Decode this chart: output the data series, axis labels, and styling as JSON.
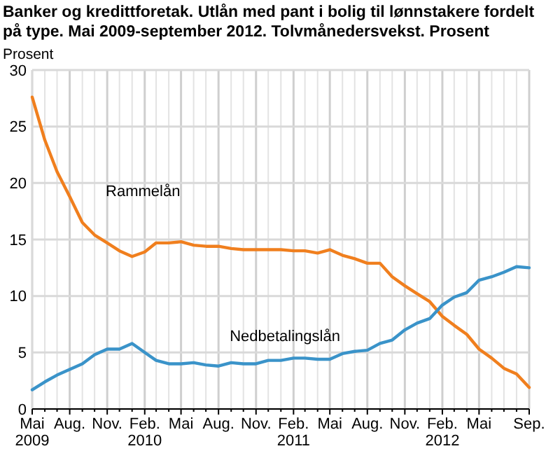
{
  "chart_data": {
    "type": "line",
    "title": "Banker og kredittforetak. Utlån med pant i bolig til lønnstakere fordelt på type. Mai 2009-september 2012. Tolvmånedersvekst. Prosent",
    "ylabel": "Prosent",
    "x": [
      "2009-05",
      "2009-06",
      "2009-07",
      "2009-08",
      "2009-09",
      "2009-10",
      "2009-11",
      "2009-12",
      "2010-01",
      "2010-02",
      "2010-03",
      "2010-04",
      "2010-05",
      "2010-06",
      "2010-07",
      "2010-08",
      "2010-09",
      "2010-10",
      "2010-11",
      "2010-12",
      "2011-01",
      "2011-02",
      "2011-03",
      "2011-04",
      "2011-05",
      "2011-06",
      "2011-07",
      "2011-08",
      "2011-09",
      "2011-10",
      "2011-11",
      "2011-12",
      "2012-01",
      "2012-02",
      "2012-03",
      "2012-04",
      "2012-05",
      "2012-06",
      "2012-07",
      "2012-08",
      "2012-09"
    ],
    "series": [
      {
        "name": "Rammelån",
        "color": "#f07f1e",
        "values": [
          27.6,
          23.8,
          21.0,
          18.8,
          16.5,
          15.4,
          14.7,
          14.0,
          13.5,
          13.9,
          14.7,
          14.7,
          14.8,
          14.5,
          14.4,
          14.4,
          14.2,
          14.1,
          14.1,
          14.1,
          14.1,
          14.0,
          14.0,
          13.8,
          14.1,
          13.6,
          13.3,
          12.9,
          12.9,
          11.7,
          10.9,
          10.2,
          9.5,
          8.2,
          7.4,
          6.6,
          5.3,
          4.5,
          3.6,
          3.1,
          1.9
        ]
      },
      {
        "name": "Nedbetalingslån",
        "color": "#3a93c9",
        "values": [
          1.7,
          2.4,
          3.0,
          3.5,
          4.0,
          4.8,
          5.3,
          5.3,
          5.8,
          5.0,
          4.3,
          4.0,
          4.0,
          4.1,
          3.9,
          3.8,
          4.1,
          4.0,
          4.0,
          4.3,
          4.3,
          4.5,
          4.5,
          4.4,
          4.4,
          4.9,
          5.1,
          5.2,
          5.8,
          6.1,
          7.0,
          7.6,
          8.0,
          9.2,
          9.9,
          10.3,
          11.4,
          11.7,
          12.1,
          12.6,
          12.5
        ]
      }
    ],
    "xlim": [
      "2009-05",
      "2012-09"
    ],
    "xticks": [
      {
        "value": "2009-05",
        "label": "Mai\n2009"
      },
      {
        "value": "2009-06",
        "label": null
      },
      {
        "value": "2009-07",
        "label": null
      },
      {
        "value": "2009-08",
        "label": "Aug."
      },
      {
        "value": "2009-09",
        "label": null
      },
      {
        "value": "2009-10",
        "label": null
      },
      {
        "value": "2009-11",
        "label": "Nov."
      },
      {
        "value": "2009-12",
        "label": null
      },
      {
        "value": "2010-01",
        "label": null
      },
      {
        "value": "2010-02",
        "label": "Feb.\n2010"
      },
      {
        "value": "2010-03",
        "label": null
      },
      {
        "value": "2010-04",
        "label": null
      },
      {
        "value": "2010-05",
        "label": "Mai"
      },
      {
        "value": "2010-06",
        "label": null
      },
      {
        "value": "2010-07",
        "label": null
      },
      {
        "value": "2010-08",
        "label": "Aug."
      },
      {
        "value": "2010-09",
        "label": null
      },
      {
        "value": "2010-10",
        "label": null
      },
      {
        "value": "2010-11",
        "label": "Nov."
      },
      {
        "value": "2010-12",
        "label": null
      },
      {
        "value": "2011-01",
        "label": null
      },
      {
        "value": "2011-02",
        "label": "Feb.\n2011"
      },
      {
        "value": "2011-03",
        "label": null
      },
      {
        "value": "2011-04",
        "label": null
      },
      {
        "value": "2011-05",
        "label": "Mai"
      },
      {
        "value": "2011-06",
        "label": null
      },
      {
        "value": "2011-07",
        "label": null
      },
      {
        "value": "2011-08",
        "label": "Aug."
      },
      {
        "value": "2011-09",
        "label": null
      },
      {
        "value": "2011-10",
        "label": null
      },
      {
        "value": "2011-11",
        "label": "Nov."
      },
      {
        "value": "2011-12",
        "label": null
      },
      {
        "value": "2012-01",
        "label": null
      },
      {
        "value": "2012-02",
        "label": "Feb.\n2012"
      },
      {
        "value": "2012-03",
        "label": null
      },
      {
        "value": "2012-04",
        "label": null
      },
      {
        "value": "2012-05",
        "label": "Mai"
      },
      {
        "value": "2012-06",
        "label": null
      },
      {
        "value": "2012-07",
        "label": null
      },
      {
        "value": "2012-08",
        "label": null
      },
      {
        "value": "2012-09",
        "label": "Sep."
      }
    ],
    "ylim": [
      0,
      30
    ],
    "yticks": [
      0,
      5,
      10,
      15,
      20,
      25,
      30
    ],
    "grid": true,
    "legend": false,
    "marker": "none",
    "line_style": "solid"
  }
}
